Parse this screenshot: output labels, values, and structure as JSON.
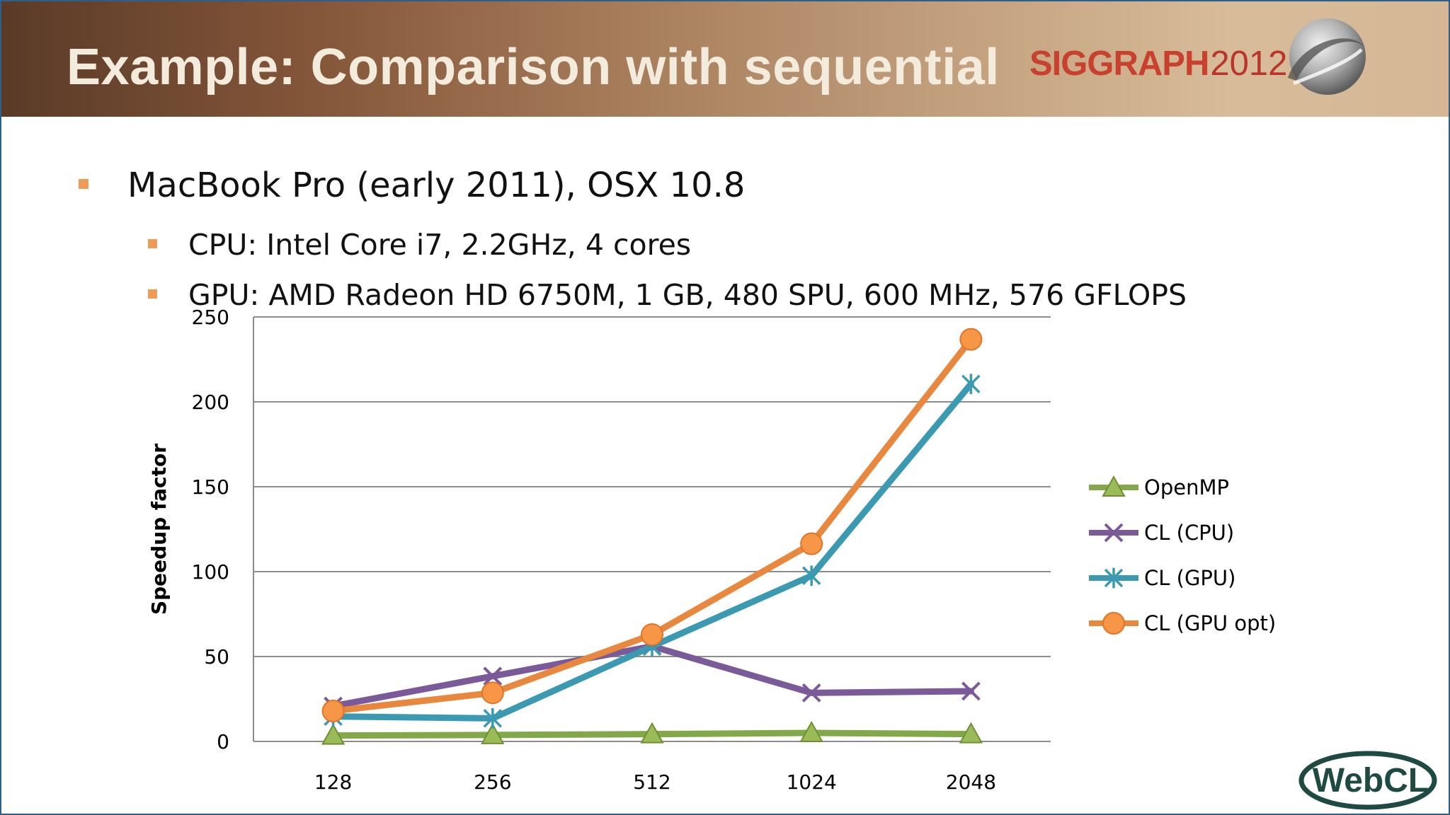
{
  "header": {
    "title": "Example: Comparison with sequential",
    "siggraph_word": "SIGGRAPH",
    "siggraph_year": "2012"
  },
  "bullets": {
    "main": "MacBook Pro (early 2011), OSX 10.8",
    "sub": [
      "CPU: Intel Core i7, 2.2GHz, 4 cores",
      "GPU: AMD Radeon HD 6750M, 1 GB, 480 SPU, 600 MHz, 576 GFLOPS"
    ]
  },
  "footer_logo": {
    "text": "WebCL"
  },
  "chart_data": {
    "type": "line",
    "title": "",
    "xlabel": "",
    "ylabel": "Speedup factor",
    "categories": [
      "128",
      "256",
      "512",
      "1024",
      "2048"
    ],
    "ylim": [
      0,
      250
    ],
    "yticks": [
      "0",
      "50",
      "100",
      "150",
      "200",
      "250"
    ],
    "grid": true,
    "legend_position": "right",
    "series": [
      {
        "name": "OpenMP",
        "values": [
          3.5,
          3.8,
          4.3,
          5,
          4.3
        ],
        "color": "#83a84a",
        "marker": "triangle"
      },
      {
        "name": "CL (CPU)",
        "values": [
          20.8,
          38.4,
          56,
          28.6,
          29.6
        ],
        "color": "#7a5a99",
        "marker": "x"
      },
      {
        "name": "CL (GPU)",
        "values": [
          14.7,
          13.6,
          56,
          97.6,
          210.5
        ],
        "color": "#3b9ab1",
        "marker": "asterisk"
      },
      {
        "name": "CL (GPU opt)",
        "values": [
          17.9,
          28.6,
          62.9,
          116.4,
          236.8
        ],
        "color": "#e8883e",
        "marker": "circle"
      }
    ]
  }
}
